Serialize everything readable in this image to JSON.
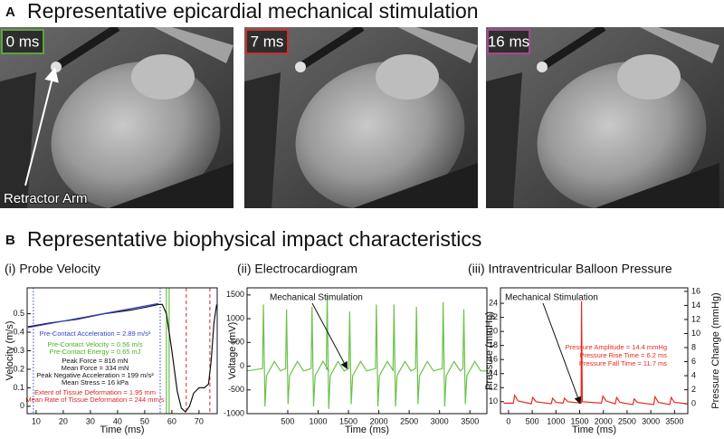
{
  "panel_a": {
    "label": "A",
    "title": "Representative epicardial mechanical stimulation",
    "frames": [
      {
        "time": "0 ms",
        "color": "#5fa043"
      },
      {
        "time": "7 ms",
        "color": "#c8312e"
      },
      {
        "time": "16 ms",
        "color": "#a04a8c"
      }
    ],
    "annotation": "Retractor Arm"
  },
  "panel_b": {
    "label": "B",
    "title": "Representative biophysical impact characteristics"
  },
  "chart_data": [
    {
      "type": "line",
      "title": "(i) Probe Velocity",
      "xlabel": "Time (ms)",
      "ylabel": "Velocity (m/s)",
      "xlim": [
        6.7,
        76.7
      ],
      "xticks": [
        10,
        20,
        30,
        40,
        50,
        60,
        70
      ],
      "ylim": [
        -0.04,
        0.64
      ],
      "yticks": [
        0,
        0.1,
        0.2,
        0.3,
        0.4,
        0.5
      ],
      "series": [
        {
          "color": "#111111",
          "x": [
            7,
            15,
            25,
            35,
            45,
            52,
            55,
            56.5,
            58,
            60,
            62,
            63.5,
            65,
            66.5,
            68,
            70,
            72,
            73.5,
            74.5,
            75.5,
            76.5
          ],
          "values": [
            0.43,
            0.45,
            0.47,
            0.5,
            0.52,
            0.54,
            0.55,
            0.55,
            0.5,
            0.3,
            0.08,
            -0.01,
            -0.03,
            0.0,
            0.07,
            0.1,
            0.1,
            0.12,
            0.25,
            0.45,
            0.55
          ]
        },
        {
          "color": "#3344cc",
          "x": [
            7,
            55
          ],
          "values": [
            0.425,
            0.555
          ]
        }
      ],
      "markers": [
        {
          "x": 9,
          "color": "#3344cc",
          "style": "dotted"
        },
        {
          "x": 55.7,
          "color": "#3344cc",
          "style": "dotted"
        },
        {
          "x": 58,
          "color": "#4caf2a",
          "style": "solid"
        },
        {
          "x": 59,
          "color": "#4caf2a",
          "style": "solid"
        },
        {
          "x": 65.3,
          "color": "#d62728",
          "style": "dashed"
        },
        {
          "x": 74,
          "color": "#d62728",
          "style": "dashed"
        }
      ],
      "annotations": [
        {
          "text": "Pre-Contact Acceleration = 2.89 m/s²",
          "color": "#3344cc"
        },
        {
          "text": "Pre-Contact Velocity = 0.56 m/s",
          "color": "#4caf2a"
        },
        {
          "text": "Pre-Contact Energy = 0.65 mJ",
          "color": "#4caf2a"
        },
        {
          "text": "Peak Force = 816 mN",
          "color": "#111111"
        },
        {
          "text": "Mean Force = 334 mN",
          "color": "#111111"
        },
        {
          "text": "Peak Negative Acceleration = 199 m/s²",
          "color": "#111111"
        },
        {
          "text": "Mean Stress = 16 kPa",
          "color": "#111111"
        },
        {
          "text": "Extent of Tissue Deformation = 1.95 mm",
          "color": "#d62728"
        },
        {
          "text": "Mean Rate of Tissue Deformation = 244 mm/s",
          "color": "#d62728"
        }
      ]
    },
    {
      "type": "line",
      "title": "(ii) Electrocardiogram",
      "xlabel": "Time (ms)",
      "ylabel": "Voltage (mV)",
      "xlim": [
        -170,
        3780
      ],
      "xticks": [
        500,
        1000,
        1500,
        2000,
        2500,
        3000,
        3500
      ],
      "ylim": [
        -1000,
        1650
      ],
      "yticks": [
        -1000,
        -500,
        0,
        500,
        1000,
        1500
      ],
      "series": [
        {
          "color": "#6cc24a",
          "x": [
            -170,
            85,
            100,
            125,
            150,
            280,
            380,
            465,
            480,
            505,
            530,
            660,
            760,
            885,
            900,
            925,
            950,
            1080,
            1180,
            1135,
            1150,
            1175,
            1200,
            1330,
            1430,
            1505,
            1520,
            1545,
            1570,
            1700,
            1800,
            1945,
            1960,
            1985,
            2010,
            2140,
            2240,
            2235,
            2250,
            2275,
            2300,
            2430,
            2530,
            2605,
            2620,
            2645,
            2670,
            2800,
            2900,
            3045,
            3060,
            3085,
            3110,
            3240,
            3340,
            3385,
            3400,
            3425,
            3450,
            3580,
            3680,
            3780
          ],
          "values": [
            -100,
            -50,
            1300,
            -850,
            -200,
            100,
            -100,
            -50,
            1200,
            -800,
            -200,
            100,
            -100,
            -50,
            1250,
            -850,
            -200,
            100,
            -100,
            -50,
            1500,
            -900,
            -200,
            100,
            -100,
            -50,
            1150,
            -800,
            -200,
            100,
            -100,
            -50,
            1300,
            -850,
            -200,
            100,
            -100,
            -50,
            1300,
            -850,
            -200,
            100,
            -100,
            -50,
            1250,
            -800,
            -200,
            100,
            -100,
            -50,
            1350,
            -850,
            -200,
            100,
            -100,
            -50,
            1200,
            -800,
            -200,
            100,
            -100,
            -100
          ]
        }
      ],
      "annotations": [
        {
          "text": "Mechanical Stimulation",
          "color": "#111111"
        }
      ]
    },
    {
      "type": "line",
      "title": "(iii) Intraventricular Balloon Pressure",
      "xlabel": "Time (ms)",
      "ylabel": "Pressure (mmHg)",
      "y2label": "Pressure Change (mmHg)",
      "xlim": [
        -170,
        3780
      ],
      "xticks": [
        0,
        500,
        1000,
        1500,
        2000,
        2500,
        3000,
        3500
      ],
      "ylim": [
        8.3,
        26.2
      ],
      "yticks": [
        10,
        12,
        14,
        16,
        18,
        20,
        22,
        24
      ],
      "y2lim": [
        -1.4,
        16.5
      ],
      "y2ticks": [
        0,
        2,
        4,
        6,
        8,
        10,
        12,
        14,
        16
      ],
      "series": [
        {
          "color": "#e8291c",
          "x": [
            -100,
            100,
            130,
            200,
            480,
            510,
            580,
            900,
            930,
            1000,
            1150,
            1180,
            1250,
            1530,
            1540,
            1555,
            1960,
            1990,
            2060,
            2250,
            2280,
            2350,
            2620,
            2650,
            2720,
            3060,
            3090,
            3160,
            3400,
            3430,
            3500,
            3780
          ],
          "values": [
            9.8,
            9.8,
            10.9,
            10.1,
            9.7,
            10.6,
            10.0,
            9.7,
            10.5,
            9.9,
            9.8,
            10.5,
            10.0,
            9.8,
            24.3,
            10.0,
            9.8,
            10.8,
            10.1,
            9.7,
            10.6,
            9.9,
            9.6,
            10.4,
            9.9,
            9.6,
            10.7,
            9.9,
            9.6,
            10.6,
            9.9,
            9.7
          ]
        }
      ],
      "annotations": [
        {
          "text": "Mechanical Stimulation",
          "color": "#111111"
        },
        {
          "text": "Pressure Amplitude = 14.4 mmHg",
          "color": "#e8291c"
        },
        {
          "text": "Pressure Rise Time = 6.2 ms",
          "color": "#e8291c"
        },
        {
          "text": "Pressure Fall Time = 11.7 ms",
          "color": "#e8291c"
        }
      ]
    }
  ]
}
